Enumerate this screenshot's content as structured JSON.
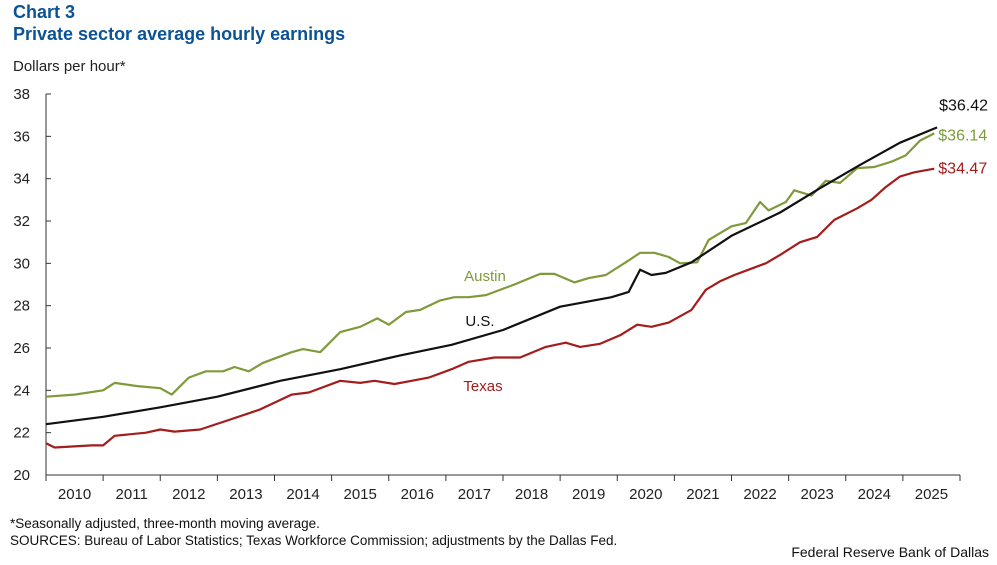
{
  "header": {
    "chart_label": "Chart 3",
    "title": "Private sector average hourly earnings",
    "unit_label": "Dollars per hour*"
  },
  "footer": {
    "note": "*Seasonally adjusted, three-month moving average.",
    "sources": "SOURCES: Bureau of Labor Statistics; Texas Workforce Commission; adjustments by the Dallas Fed.",
    "credit": "Federal Reserve Bank of Dallas"
  },
  "chart_data": {
    "type": "line",
    "title": "Private sector average hourly earnings",
    "ylabel": "Dollars per hour*",
    "xlim": [
      2010,
      2026
    ],
    "ylim": [
      20,
      38
    ],
    "yticks": [
      20,
      22,
      24,
      26,
      28,
      30,
      32,
      34,
      36,
      38
    ],
    "xtick_labels": [
      "2010",
      "2011",
      "2012",
      "2013",
      "2014",
      "2015",
      "2016",
      "2017",
      "2018",
      "2019",
      "2020",
      "2021",
      "2022",
      "2023",
      "2024",
      "2025"
    ],
    "grid": false,
    "series": [
      {
        "name": "Austin",
        "color": "#7f9a3a",
        "end_label": "$36.14",
        "label_color": "#7f9a3a",
        "x": [
          2010,
          2010.5,
          2011.0,
          2011.2,
          2011.6,
          2012.0,
          2012.2,
          2012.5,
          2012.8,
          2013.1,
          2013.3,
          2013.55,
          2013.8,
          2014.3,
          2014.5,
          2014.8,
          2015.15,
          2015.5,
          2015.8,
          2016.0,
          2016.3,
          2016.55,
          2016.9,
          2017.15,
          2017.4,
          2017.7,
          2018.2,
          2018.65,
          2018.9,
          2019.25,
          2019.5,
          2019.8,
          2020.15,
          2020.4,
          2020.65,
          2020.9,
          2021.1,
          2021.4,
          2021.6,
          2022.0,
          2022.25,
          2022.5,
          2022.65,
          2022.95,
          2023.1,
          2023.4,
          2023.65,
          2023.9,
          2024.2,
          2024.5,
          2024.8,
          2025.05,
          2025.3,
          2025.55
        ],
        "y": [
          23.7,
          23.8,
          24.0,
          24.35,
          24.2,
          24.1,
          23.8,
          24.6,
          24.9,
          24.9,
          25.1,
          24.9,
          25.3,
          25.8,
          25.95,
          25.8,
          26.75,
          27.0,
          27.4,
          27.1,
          27.7,
          27.8,
          28.25,
          28.4,
          28.4,
          28.5,
          29.0,
          29.5,
          29.5,
          29.1,
          29.3,
          29.45,
          30.05,
          30.5,
          30.5,
          30.3,
          30.0,
          30.05,
          31.1,
          31.75,
          31.9,
          32.9,
          32.5,
          32.9,
          33.45,
          33.2,
          33.9,
          33.8,
          34.5,
          34.55,
          34.8,
          35.1,
          35.8,
          36.14
        ]
      },
      {
        "name": "U.S.",
        "color": "#111111",
        "end_label": "$36.42",
        "label_color": "#111111",
        "x": [
          2010,
          2011,
          2012,
          2013,
          2014.1,
          2015.15,
          2016.2,
          2017.1,
          2018,
          2019,
          2019.9,
          2020.2,
          2020.4,
          2020.6,
          2020.85,
          2021.3,
          2022.0,
          2022.85,
          2023.55,
          2024.25,
          2024.95,
          2025.6
        ],
        "y": [
          22.4,
          22.75,
          23.2,
          23.7,
          24.45,
          25.0,
          25.65,
          26.15,
          26.85,
          27.95,
          28.4,
          28.65,
          29.7,
          29.45,
          29.55,
          30.05,
          31.3,
          32.4,
          33.55,
          34.65,
          35.7,
          36.42
        ]
      },
      {
        "name": "Texas",
        "color": "#a51c1c",
        "end_label": "$34.47",
        "label_color": "#a51c1c",
        "x": [
          2010,
          2010.15,
          2010.8,
          2011.0,
          2011.2,
          2011.75,
          2012.0,
          2012.25,
          2012.7,
          2013.2,
          2013.75,
          2014.3,
          2014.6,
          2015.15,
          2015.5,
          2015.75,
          2016.1,
          2016.4,
          2016.7,
          2017.1,
          2017.4,
          2017.85,
          2018.3,
          2018.75,
          2019.1,
          2019.35,
          2019.7,
          2020.05,
          2020.35,
          2020.6,
          2020.9,
          2021.3,
          2021.55,
          2021.8,
          2022.05,
          2022.3,
          2022.6,
          2022.85,
          2023.2,
          2023.5,
          2023.8,
          2024.2,
          2024.45,
          2024.7,
          2024.95,
          2025.2,
          2025.55
        ],
        "y": [
          21.5,
          21.3,
          21.4,
          21.4,
          21.85,
          22.0,
          22.15,
          22.05,
          22.15,
          22.6,
          23.1,
          23.8,
          23.9,
          24.45,
          24.35,
          24.45,
          24.3,
          24.45,
          24.6,
          25.0,
          25.35,
          25.55,
          25.55,
          26.05,
          26.25,
          26.05,
          26.2,
          26.6,
          27.1,
          27.0,
          27.2,
          27.8,
          28.75,
          29.15,
          29.45,
          29.7,
          30.0,
          30.4,
          31.0,
          31.25,
          32.05,
          32.6,
          33.0,
          33.6,
          34.1,
          34.3,
          34.47
        ]
      }
    ]
  }
}
